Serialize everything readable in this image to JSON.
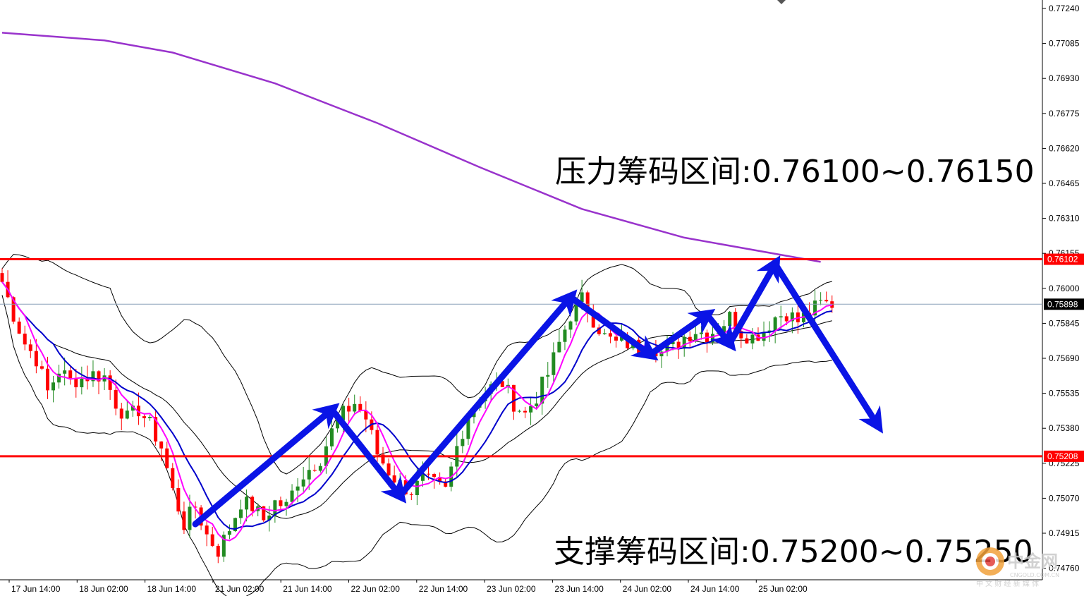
{
  "chart_data": {
    "type": "candlestick",
    "title": "",
    "y_axis": {
      "min": 0.747,
      "max": 0.7724,
      "ticks": [
        "0.77240",
        "0.77085",
        "0.76930",
        "0.76775",
        "0.76620",
        "0.76465",
        "0.76310",
        "0.76155",
        "0.76000",
        "0.75845",
        "0.75690",
        "0.75535",
        "0.75380",
        "0.75225",
        "0.75070",
        "0.74915",
        "0.74760"
      ]
    },
    "x_axis": {
      "labels": [
        "17 Jun 14:00",
        "18 Jun 02:00",
        "18 Jun 14:00",
        "21 Jun 02:00",
        "21 Jun 14:00",
        "22 Jun 02:00",
        "22 Jun 14:00",
        "23 Jun 02:00",
        "23 Jun 14:00",
        "24 Jun 02:00",
        "24 Jun 14:00",
        "25 Jun 02:00"
      ]
    },
    "horizontal_levels": [
      {
        "value": 0.76102,
        "label": "0.76102",
        "color": "#ff0000"
      },
      {
        "value": 0.75208,
        "label": "0.75208",
        "color": "#ff0000"
      }
    ],
    "current_price": {
      "value": 0.75898,
      "label": "0.75898"
    },
    "annotations": {
      "resistance": "压力筹码区间:0.76100~0.76150",
      "support": "支撑筹码区间:0.75200~0.75250"
    },
    "price_path": [
      [
        0,
        0.76
      ],
      [
        2,
        0.7585
      ],
      [
        4,
        0.7572
      ],
      [
        6,
        0.7565
      ],
      [
        8,
        0.755
      ],
      [
        10,
        0.756
      ],
      [
        12,
        0.7555
      ],
      [
        14,
        0.7556
      ],
      [
        16,
        0.7558
      ],
      [
        18,
        0.7557
      ],
      [
        20,
        0.7545
      ],
      [
        22,
        0.7538
      ],
      [
        24,
        0.7542
      ],
      [
        26,
        0.7535
      ],
      [
        28,
        0.7525
      ],
      [
        30,
        0.7505
      ],
      [
        32,
        0.749
      ],
      [
        34,
        0.7498
      ],
      [
        36,
        0.7485
      ],
      [
        38,
        0.7478
      ],
      [
        40,
        0.7488
      ],
      [
        42,
        0.75
      ],
      [
        44,
        0.7498
      ],
      [
        46,
        0.7492
      ],
      [
        48,
        0.75
      ],
      [
        50,
        0.7498
      ],
      [
        52,
        0.751
      ],
      [
        54,
        0.7515
      ],
      [
        56,
        0.752
      ],
      [
        58,
        0.7532
      ],
      [
        60,
        0.754
      ],
      [
        62,
        0.7545
      ],
      [
        64,
        0.7538
      ],
      [
        66,
        0.7522
      ],
      [
        68,
        0.7514
      ],
      [
        70,
        0.7508
      ],
      [
        72,
        0.7505
      ],
      [
        74,
        0.751
      ],
      [
        76,
        0.7508
      ],
      [
        78,
        0.7505
      ],
      [
        80,
        0.7525
      ],
      [
        82,
        0.754
      ],
      [
        84,
        0.7548
      ],
      [
        86,
        0.7552
      ],
      [
        88,
        0.7554
      ],
      [
        90,
        0.7545
      ],
      [
        92,
        0.754
      ],
      [
        94,
        0.7548
      ],
      [
        96,
        0.7558
      ],
      [
        98,
        0.7572
      ],
      [
        100,
        0.7585
      ],
      [
        102,
        0.7592
      ],
      [
        104,
        0.7583
      ],
      [
        106,
        0.7575
      ],
      [
        108,
        0.7572
      ],
      [
        110,
        0.7572
      ],
      [
        112,
        0.757
      ],
      [
        114,
        0.7572
      ],
      [
        116,
        0.7568
      ],
      [
        118,
        0.757
      ],
      [
        120,
        0.7575
      ],
      [
        122,
        0.7578
      ],
      [
        124,
        0.7576
      ],
      [
        126,
        0.7579
      ],
      [
        128,
        0.7584
      ],
      [
        130,
        0.7577
      ],
      [
        132,
        0.7575
      ],
      [
        134,
        0.7578
      ],
      [
        136,
        0.7584
      ],
      [
        138,
        0.7586
      ],
      [
        140,
        0.7582
      ],
      [
        142,
        0.7586
      ],
      [
        144,
        0.759
      ]
    ],
    "ma_periods": [
      10,
      5
    ],
    "bollinger": {
      "period": 20,
      "stddev": 2
    },
    "long_ma_line": {
      "color": "#9933cc",
      "points": [
        [
          0,
          0.7713
        ],
        [
          18,
          0.77095
        ],
        [
          30,
          0.7704
        ],
        [
          48,
          0.769
        ],
        [
          66,
          0.7672
        ],
        [
          84,
          0.7652
        ],
        [
          102,
          0.7633
        ],
        [
          120,
          0.762
        ],
        [
          144,
          0.7609
        ]
      ]
    },
    "colors": {
      "bull": "#228b22",
      "bear": "#ff0000",
      "ma_fast": "#ff00ff",
      "ma_slow": "#0000cc",
      "bands": "#000000",
      "arrow": "#0a14e6",
      "grid_current": "#8aa0b8"
    },
    "watermark": {
      "name": "中金网",
      "domain": "CNGOLD.COM.CN",
      "slogan": "中 文 财 经 新 媒 体"
    }
  }
}
